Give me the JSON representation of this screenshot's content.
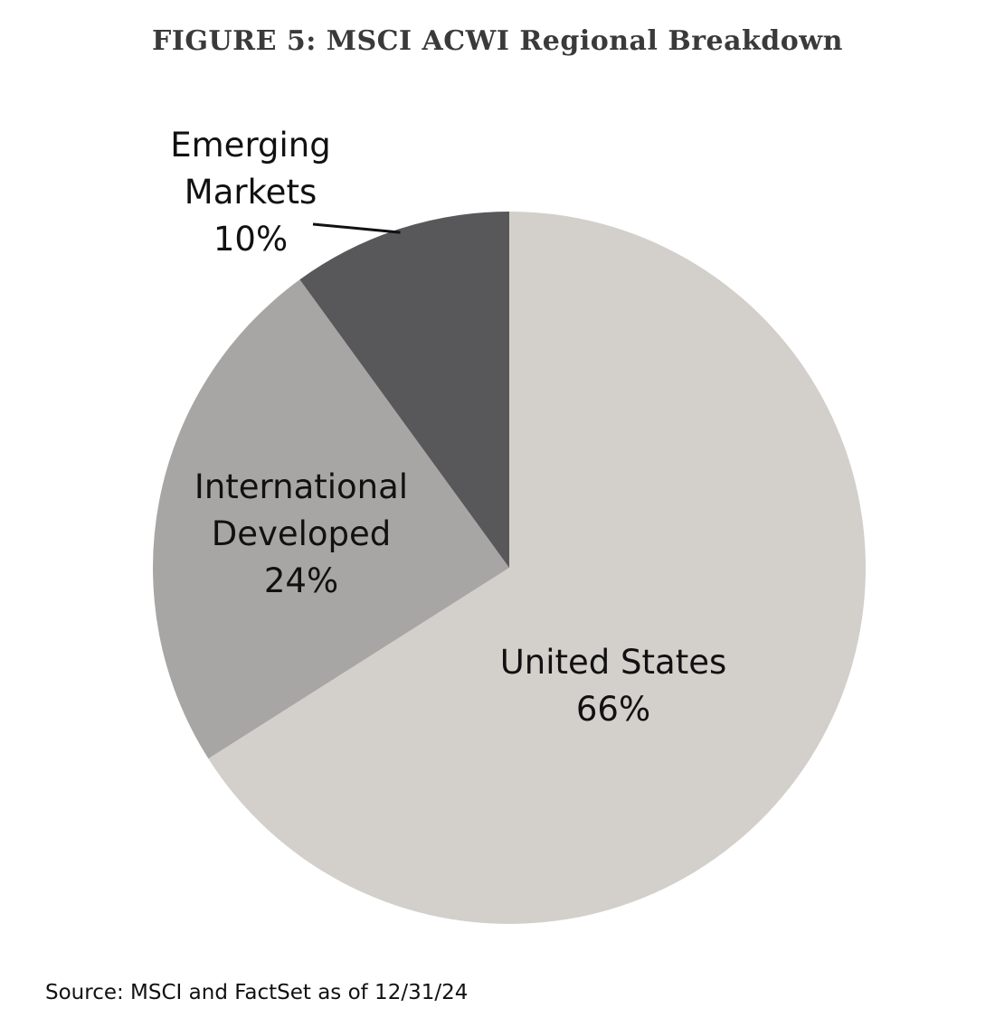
{
  "title": "FIGURE 5: MSCI ACWI Regional Breakdown",
  "source": "Source: MSCI and FactSet as of 12/31/24",
  "chart_data": {
    "type": "pie",
    "title": "FIGURE 5: MSCI ACWI Regional Breakdown",
    "start_angle_deg": 0,
    "direction": "clockwise",
    "slices": [
      {
        "label_lines": [
          "United States",
          "66%"
        ],
        "name": "United States",
        "value": 66,
        "color": "#d3cfcb"
      },
      {
        "label_lines": [
          "International",
          "Developed",
          "24%"
        ],
        "name": "International Developed",
        "value": 24,
        "color": "#a7a6a4"
      },
      {
        "label_lines": [
          "Emerging",
          "Markets",
          "10%"
        ],
        "name": "Emerging Markets",
        "value": 10,
        "color": "#58585a"
      }
    ]
  }
}
